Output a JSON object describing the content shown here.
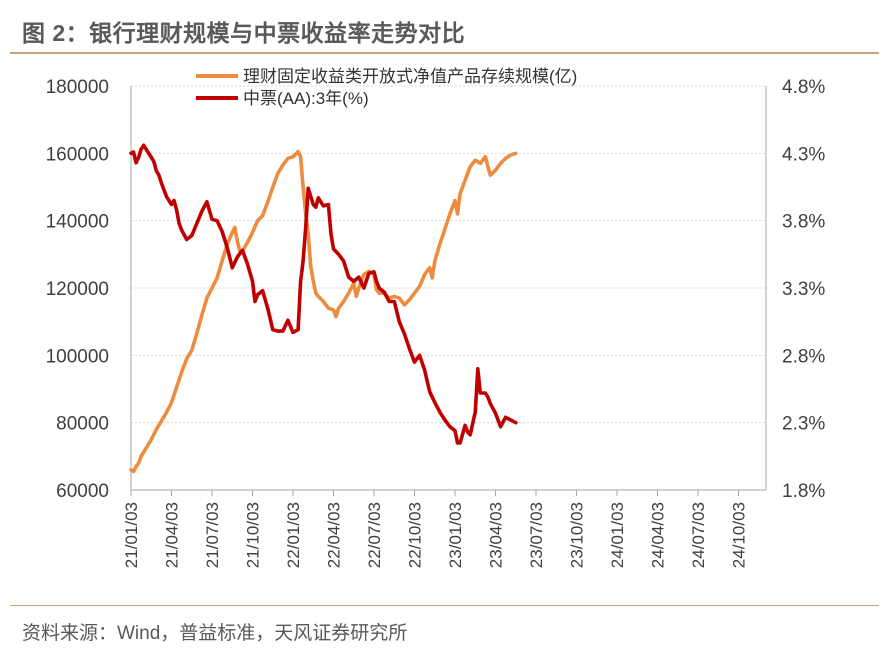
{
  "title": "图 2：银行理财规模与中票收益率走势对比",
  "source": "资料来源：Wind，普益标准，天风证券研究所",
  "chart_data": {
    "type": "line",
    "left_axis": {
      "min": 60000,
      "max": 180000,
      "ticks": [
        "60000",
        "80000",
        "100000",
        "120000",
        "140000",
        "160000",
        "180000"
      ]
    },
    "right_axis": {
      "min": 1.8,
      "max": 4.8,
      "ticks": [
        "1.8%",
        "2.3%",
        "2.8%",
        "3.3%",
        "3.8%",
        "4.3%",
        "4.8%"
      ]
    },
    "x_ticks": [
      "21/01/03",
      "21/04/03",
      "21/07/03",
      "21/10/03",
      "22/01/03",
      "22/04/03",
      "22/07/03",
      "22/10/03",
      "23/01/03",
      "23/04/03",
      "23/07/03",
      "23/10/03",
      "24/01/03",
      "24/04/03",
      "24/07/03",
      "24/10/03"
    ],
    "x_end": "24/12",
    "grid": true,
    "legend_position": "top",
    "series": [
      {
        "name": "理财固定收益类开放式净值产品存续规模(亿)",
        "axis": "left",
        "color": "#ed8b3e",
        "points": [
          [
            0,
            66000
          ],
          [
            0.25,
            65500
          ],
          [
            0.5,
            67000
          ],
          [
            0.75,
            68000
          ],
          [
            1,
            70000
          ],
          [
            1.5,
            72500
          ],
          [
            2,
            75000
          ],
          [
            2.5,
            78000
          ],
          [
            3,
            80500
          ],
          [
            3.5,
            83000
          ],
          [
            4,
            86000
          ],
          [
            4.5,
            90500
          ],
          [
            5,
            95000
          ],
          [
            5.5,
            99000
          ],
          [
            6,
            101500
          ],
          [
            6.5,
            106500
          ],
          [
            7,
            112000
          ],
          [
            7.5,
            117000
          ],
          [
            8,
            120000
          ],
          [
            8.5,
            123000
          ],
          [
            9,
            128000
          ],
          [
            9.5,
            133000
          ],
          [
            10,
            136500
          ],
          [
            10.25,
            138000
          ],
          [
            10.5,
            134000
          ],
          [
            10.75,
            131000
          ],
          [
            11,
            131000
          ],
          [
            11.5,
            133500
          ],
          [
            12,
            136500
          ],
          [
            12.5,
            140000
          ],
          [
            13,
            141500
          ],
          [
            13.5,
            145500
          ],
          [
            14,
            150000
          ],
          [
            14.5,
            154000
          ],
          [
            15,
            156500
          ],
          [
            15.5,
            158500
          ],
          [
            16,
            159000
          ],
          [
            16.5,
            160500
          ],
          [
            16.75,
            159000
          ],
          [
            17,
            150000
          ],
          [
            17.25,
            142000
          ],
          [
            17.5,
            136000
          ],
          [
            17.75,
            126500
          ],
          [
            18,
            122000
          ],
          [
            18.25,
            118500
          ],
          [
            18.5,
            117500
          ],
          [
            19,
            116000
          ],
          [
            19.5,
            114000
          ],
          [
            20,
            113500
          ],
          [
            20.25,
            111500
          ],
          [
            20.5,
            114000
          ],
          [
            21,
            116000
          ],
          [
            21.5,
            118500
          ],
          [
            22,
            121500
          ],
          [
            22.25,
            117500
          ],
          [
            22.5,
            120000
          ],
          [
            23,
            124000
          ],
          [
            23.5,
            125000
          ],
          [
            24,
            124000
          ],
          [
            24.25,
            119500
          ],
          [
            24.5,
            118500
          ],
          [
            25,
            118500
          ],
          [
            25.5,
            117000
          ],
          [
            26,
            117500
          ],
          [
            26.5,
            117000
          ],
          [
            27,
            115000
          ],
          [
            27.5,
            116500
          ],
          [
            28,
            118500
          ],
          [
            28.5,
            120500
          ],
          [
            29,
            124000
          ],
          [
            29.5,
            126000
          ],
          [
            29.75,
            123000
          ],
          [
            30,
            128000
          ],
          [
            30.5,
            133000
          ],
          [
            31,
            137500
          ],
          [
            31.5,
            142000
          ],
          [
            32,
            146000
          ],
          [
            32.25,
            142000
          ],
          [
            32.5,
            148000
          ],
          [
            33,
            152000
          ],
          [
            33.5,
            156000
          ],
          [
            34,
            158000
          ],
          [
            34.5,
            157000
          ],
          [
            35,
            159000
          ],
          [
            35.25,
            156000
          ],
          [
            35.5,
            153500
          ],
          [
            36,
            155000
          ],
          [
            36.5,
            157000
          ],
          [
            37,
            158500
          ],
          [
            37.5,
            159500
          ],
          [
            38,
            160000
          ]
        ]
      },
      {
        "name": "中票(AA):3年(%)",
        "axis": "right",
        "color": "#c00000",
        "points": [
          [
            0,
            4.3
          ],
          [
            0.25,
            4.31
          ],
          [
            0.5,
            4.23
          ],
          [
            0.75,
            4.27
          ],
          [
            1,
            4.33
          ],
          [
            1.25,
            4.36
          ],
          [
            1.5,
            4.33
          ],
          [
            1.75,
            4.3
          ],
          [
            2,
            4.27
          ],
          [
            2.25,
            4.24
          ],
          [
            2.5,
            4.17
          ],
          [
            2.75,
            4.14
          ],
          [
            3,
            4.08
          ],
          [
            3.5,
            3.98
          ],
          [
            4,
            3.92
          ],
          [
            4.25,
            3.95
          ],
          [
            4.5,
            3.88
          ],
          [
            4.75,
            3.78
          ],
          [
            5,
            3.73
          ],
          [
            5.5,
            3.66
          ],
          [
            6,
            3.69
          ],
          [
            6.5,
            3.78
          ],
          [
            7,
            3.87
          ],
          [
            7.5,
            3.94
          ],
          [
            8,
            3.81
          ],
          [
            8.5,
            3.8
          ],
          [
            9,
            3.72
          ],
          [
            9.5,
            3.6
          ],
          [
            10,
            3.45
          ],
          [
            10.5,
            3.53
          ],
          [
            11,
            3.58
          ],
          [
            11.5,
            3.48
          ],
          [
            12,
            3.35
          ],
          [
            12.25,
            3.2
          ],
          [
            12.5,
            3.25
          ],
          [
            13,
            3.28
          ],
          [
            13.5,
            3.15
          ],
          [
            14,
            2.99
          ],
          [
            14.5,
            2.98
          ],
          [
            15,
            2.98
          ],
          [
            15.5,
            3.06
          ],
          [
            16,
            2.97
          ],
          [
            16.5,
            2.99
          ],
          [
            16.75,
            3.35
          ],
          [
            17,
            3.5
          ],
          [
            17.25,
            3.75
          ],
          [
            17.5,
            4.04
          ],
          [
            17.75,
            3.98
          ],
          [
            18,
            3.92
          ],
          [
            18.25,
            3.9
          ],
          [
            18.5,
            3.97
          ],
          [
            19,
            3.91
          ],
          [
            19.5,
            3.92
          ],
          [
            19.75,
            3.7
          ],
          [
            20,
            3.59
          ],
          [
            20.5,
            3.55
          ],
          [
            21,
            3.5
          ],
          [
            21.5,
            3.38
          ],
          [
            22,
            3.35
          ],
          [
            22.5,
            3.38
          ],
          [
            23,
            3.3
          ],
          [
            23.5,
            3.41
          ],
          [
            24,
            3.42
          ],
          [
            24.25,
            3.35
          ],
          [
            24.5,
            3.3
          ],
          [
            25,
            3.27
          ],
          [
            25.5,
            3.2
          ],
          [
            26,
            3.2
          ],
          [
            26.5,
            3.05
          ],
          [
            27,
            2.96
          ],
          [
            27.5,
            2.85
          ],
          [
            28,
            2.75
          ],
          [
            28.5,
            2.8
          ],
          [
            29,
            2.69
          ],
          [
            29.5,
            2.53
          ],
          [
            30,
            2.45
          ],
          [
            30.5,
            2.38
          ],
          [
            31,
            2.32
          ],
          [
            31.5,
            2.27
          ],
          [
            32,
            2.24
          ],
          [
            32.25,
            2.15
          ],
          [
            32.5,
            2.15
          ],
          [
            33,
            2.28
          ],
          [
            33.25,
            2.23
          ],
          [
            33.5,
            2.21
          ],
          [
            34,
            2.38
          ],
          [
            34.25,
            2.7
          ],
          [
            34.5,
            2.52
          ],
          [
            35,
            2.52
          ],
          [
            35.25,
            2.49
          ],
          [
            35.5,
            2.44
          ],
          [
            36,
            2.37
          ],
          [
            36.5,
            2.27
          ],
          [
            37,
            2.34
          ],
          [
            37.5,
            2.32
          ],
          [
            38,
            2.3
          ]
        ]
      }
    ]
  }
}
